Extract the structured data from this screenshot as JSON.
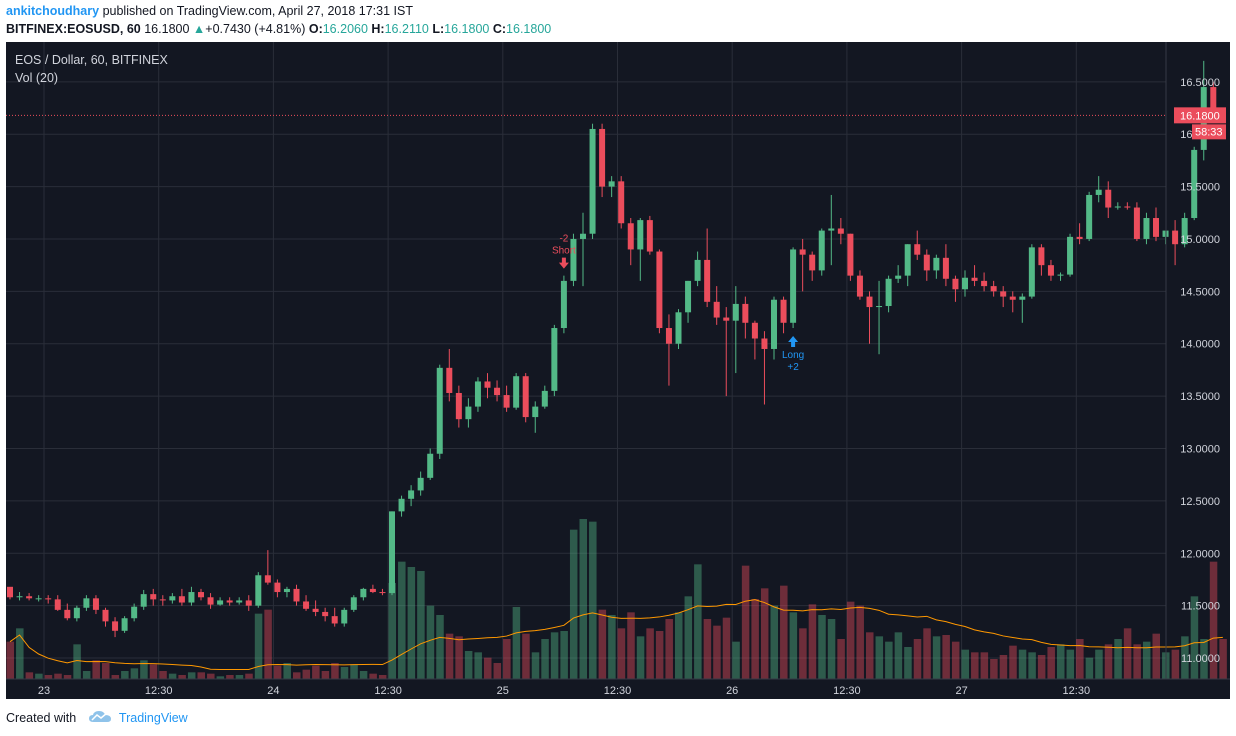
{
  "header": {
    "user": "ankitchoudhary",
    "published_text": "published on TradingView.com, April 27, 2018 17:31 IST",
    "symbol": "BITFINEX:EOSUSD, 60",
    "last": "16.1800",
    "change": "+0.7430 (+4.81%)",
    "o_label": "O:",
    "o_value": "16.2060",
    "h_label": "H:",
    "h_value": "16.2110",
    "l_label": "L:",
    "l_value": "16.1800",
    "c_label": "C:",
    "c_value": "16.1800"
  },
  "legend": {
    "title": "EOS / Dollar, 60, BITFINEX",
    "vol": "Vol (20)"
  },
  "footer": {
    "created_with": "Created with",
    "brand": "TradingView"
  },
  "colors": {
    "background": "#131722",
    "up": "#53b987",
    "down": "#eb4d5c",
    "grid": "#2a2e39",
    "ma": "#ff9800",
    "price_line": "#eb4d5c",
    "signal_short": "#eb4d5c",
    "signal_long": "#2196f3"
  },
  "chart_data": {
    "type": "candlestick",
    "y_axis_ticks": [
      "16.5000",
      "16.0000",
      "15.5000",
      "15.0000",
      "14.5000",
      "14.0000",
      "13.5000",
      "13.0000",
      "12.5000",
      "12.0000",
      "11.5000",
      "11.0000"
    ],
    "ylim": [
      10.8,
      16.88
    ],
    "x_axis_ticks": [
      "23",
      "12:30",
      "24",
      "12:30",
      "25",
      "12:30",
      "26",
      "12:30",
      "27",
      "12:30"
    ],
    "current_price": {
      "label": "16.1800",
      "value": 16.18,
      "countdown": "58:33"
    },
    "signals": [
      {
        "type": "short",
        "text_top": "-2",
        "text_bottom": "Short",
        "index": 58
      },
      {
        "type": "long",
        "text_top": "Long",
        "text_bottom": "+2",
        "index": 82
      }
    ],
    "vol_ma_period": 20,
    "candles": [
      [
        11.68,
        11.66,
        11.56,
        11.58
      ],
      [
        11.58,
        11.63,
        11.55,
        11.59
      ],
      [
        11.59,
        11.62,
        11.55,
        11.57
      ],
      [
        11.57,
        11.6,
        11.54,
        11.57
      ],
      [
        11.57,
        11.6,
        11.52,
        11.56
      ],
      [
        11.56,
        11.6,
        11.45,
        11.46
      ],
      [
        11.46,
        11.52,
        11.36,
        11.38
      ],
      [
        11.38,
        11.5,
        11.35,
        11.48
      ],
      [
        11.48,
        11.6,
        11.45,
        11.57
      ],
      [
        11.57,
        11.6,
        11.42,
        11.46
      ],
      [
        11.46,
        11.48,
        11.3,
        11.35
      ],
      [
        11.35,
        11.39,
        11.2,
        11.26
      ],
      [
        11.26,
        11.4,
        11.24,
        11.38
      ],
      [
        11.38,
        11.52,
        11.35,
        11.49
      ],
      [
        11.49,
        11.65,
        11.46,
        11.61
      ],
      [
        11.61,
        11.66,
        11.5,
        11.56
      ],
      [
        11.56,
        11.6,
        11.5,
        11.55
      ],
      [
        11.55,
        11.62,
        11.52,
        11.59
      ],
      [
        11.59,
        11.66,
        11.5,
        11.53
      ],
      [
        11.53,
        11.68,
        11.5,
        11.63
      ],
      [
        11.63,
        11.66,
        11.55,
        11.58
      ],
      [
        11.58,
        11.62,
        11.47,
        11.51
      ],
      [
        11.51,
        11.58,
        11.5,
        11.55
      ],
      [
        11.55,
        11.58,
        11.5,
        11.53
      ],
      [
        11.53,
        11.58,
        11.51,
        11.55
      ],
      [
        11.55,
        11.6,
        11.45,
        11.5
      ],
      [
        11.5,
        11.82,
        11.48,
        11.79
      ],
      [
        11.79,
        12.03,
        11.7,
        11.72
      ],
      [
        11.72,
        11.75,
        11.58,
        11.63
      ],
      [
        11.63,
        11.68,
        11.58,
        11.66
      ],
      [
        11.66,
        11.7,
        11.5,
        11.54
      ],
      [
        11.54,
        11.6,
        11.45,
        11.47
      ],
      [
        11.47,
        11.55,
        11.4,
        11.44
      ],
      [
        11.44,
        11.48,
        11.35,
        11.4
      ],
      [
        11.4,
        11.48,
        11.3,
        11.33
      ],
      [
        11.33,
        11.48,
        11.3,
        11.46
      ],
      [
        11.46,
        11.6,
        11.44,
        11.58
      ],
      [
        11.58,
        11.67,
        11.55,
        11.66
      ],
      [
        11.66,
        11.7,
        11.62,
        11.63
      ],
      [
        11.63,
        11.66,
        11.6,
        11.62
      ],
      [
        11.62,
        12.4,
        11.6,
        12.4
      ],
      [
        12.4,
        12.55,
        12.35,
        12.52
      ],
      [
        12.52,
        12.65,
        12.45,
        12.6
      ],
      [
        12.6,
        12.78,
        12.55,
        12.72
      ],
      [
        12.72,
        13.0,
        12.7,
        12.95
      ],
      [
        12.95,
        13.8,
        12.9,
        13.77
      ],
      [
        13.77,
        13.95,
        13.45,
        13.53
      ],
      [
        13.53,
        13.6,
        13.2,
        13.28
      ],
      [
        13.28,
        13.48,
        13.2,
        13.4
      ],
      [
        13.4,
        13.68,
        13.35,
        13.64
      ],
      [
        13.64,
        13.72,
        13.48,
        13.58
      ],
      [
        13.58,
        13.65,
        13.45,
        13.51
      ],
      [
        13.51,
        13.6,
        13.35,
        13.39
      ],
      [
        13.39,
        13.72,
        13.37,
        13.69
      ],
      [
        13.69,
        13.72,
        13.25,
        13.3
      ],
      [
        13.3,
        13.45,
        13.15,
        13.4
      ],
      [
        13.4,
        13.6,
        13.38,
        13.55
      ],
      [
        13.55,
        14.18,
        13.5,
        14.15
      ],
      [
        14.15,
        14.65,
        14.1,
        14.6
      ],
      [
        14.6,
        15.05,
        14.55,
        15.0
      ],
      [
        15.0,
        15.25,
        14.55,
        15.05
      ],
      [
        15.05,
        16.1,
        15.0,
        16.05
      ],
      [
        16.05,
        16.1,
        15.4,
        15.5
      ],
      [
        15.5,
        15.6,
        15.4,
        15.55
      ],
      [
        15.55,
        15.6,
        15.1,
        15.15
      ],
      [
        15.15,
        15.2,
        14.75,
        14.9
      ],
      [
        14.9,
        15.2,
        14.6,
        15.18
      ],
      [
        15.18,
        15.22,
        14.85,
        14.88
      ],
      [
        14.88,
        14.9,
        14.1,
        14.15
      ],
      [
        14.15,
        14.28,
        13.6,
        14.0
      ],
      [
        14.0,
        14.33,
        13.95,
        14.3
      ],
      [
        14.3,
        14.6,
        14.2,
        14.6
      ],
      [
        14.6,
        14.88,
        14.55,
        14.8
      ],
      [
        14.8,
        15.1,
        14.35,
        14.4
      ],
      [
        14.4,
        14.55,
        14.18,
        14.25
      ],
      [
        14.25,
        14.35,
        13.5,
        14.22
      ],
      [
        14.22,
        14.55,
        13.72,
        14.38
      ],
      [
        14.38,
        14.45,
        14.05,
        14.2
      ],
      [
        14.2,
        14.22,
        13.85,
        14.05
      ],
      [
        14.05,
        14.12,
        13.42,
        13.95
      ],
      [
        13.95,
        14.45,
        13.85,
        14.42
      ],
      [
        14.42,
        14.45,
        14.1,
        14.2
      ],
      [
        14.2,
        14.92,
        14.15,
        14.9
      ],
      [
        14.9,
        15.0,
        14.5,
        14.85
      ],
      [
        14.85,
        14.88,
        14.6,
        14.7
      ],
      [
        14.7,
        15.1,
        14.65,
        15.08
      ],
      [
        15.08,
        15.42,
        14.75,
        15.1
      ],
      [
        15.1,
        15.2,
        14.95,
        15.05
      ],
      [
        15.05,
        15.05,
        14.6,
        14.65
      ],
      [
        14.65,
        14.7,
        14.42,
        14.45
      ],
      [
        14.45,
        14.5,
        14.0,
        14.35
      ],
      [
        14.35,
        14.6,
        13.9,
        14.36
      ],
      [
        14.36,
        14.65,
        14.3,
        14.62
      ],
      [
        14.62,
        14.75,
        14.58,
        14.65
      ],
      [
        14.65,
        14.95,
        14.55,
        14.95
      ],
      [
        14.95,
        15.08,
        14.8,
        14.85
      ],
      [
        14.85,
        14.9,
        14.6,
        14.7
      ],
      [
        14.7,
        14.85,
        14.62,
        14.82
      ],
      [
        14.82,
        14.95,
        14.55,
        14.62
      ],
      [
        14.62,
        14.65,
        14.4,
        14.52
      ],
      [
        14.52,
        14.7,
        14.45,
        14.63
      ],
      [
        14.63,
        14.75,
        14.55,
        14.6
      ],
      [
        14.6,
        14.68,
        14.5,
        14.55
      ],
      [
        14.55,
        14.6,
        14.45,
        14.5
      ],
      [
        14.5,
        14.55,
        14.35,
        14.45
      ],
      [
        14.45,
        14.5,
        14.3,
        14.42
      ],
      [
        14.42,
        14.48,
        14.2,
        14.45
      ],
      [
        14.45,
        14.95,
        14.43,
        14.92
      ],
      [
        14.92,
        14.95,
        14.65,
        14.75
      ],
      [
        14.75,
        14.8,
        14.6,
        14.65
      ],
      [
        14.65,
        14.68,
        14.6,
        14.66
      ],
      [
        14.66,
        15.05,
        14.64,
        15.02
      ],
      [
        15.02,
        15.15,
        14.95,
        15.0
      ],
      [
        15.0,
        15.45,
        14.98,
        15.42
      ],
      [
        15.42,
        15.6,
        15.35,
        15.47
      ],
      [
        15.47,
        15.55,
        15.2,
        15.3
      ],
      [
        15.3,
        15.35,
        15.28,
        15.31
      ],
      [
        15.31,
        15.35,
        15.28,
        15.3
      ],
      [
        15.3,
        15.35,
        14.98,
        15.0
      ],
      [
        15.0,
        15.25,
        14.95,
        15.2
      ],
      [
        15.2,
        15.3,
        14.98,
        15.02
      ],
      [
        15.02,
        15.05,
        14.95,
        15.08
      ],
      [
        15.08,
        15.18,
        14.75,
        14.95
      ],
      [
        14.95,
        15.25,
        14.92,
        15.2
      ],
      [
        15.2,
        15.88,
        15.18,
        15.85
      ],
      [
        15.85,
        16.7,
        15.75,
        16.45
      ],
      [
        16.45,
        16.5,
        16.18,
        16.2
      ],
      [
        16.2,
        16.21,
        16.18,
        16.18
      ]
    ],
    "volume": [
      0.28,
      0.38,
      0.05,
      0.04,
      0.03,
      0.04,
      0.03,
      0.26,
      0.06,
      0.14,
      0.12,
      0.03,
      0.06,
      0.08,
      0.14,
      0.11,
      0.06,
      0.04,
      0.03,
      0.05,
      0.05,
      0.04,
      0.02,
      0.03,
      0.03,
      0.04,
      0.49,
      0.52,
      0.1,
      0.12,
      0.05,
      0.07,
      0.1,
      0.06,
      0.12,
      0.09,
      0.11,
      0.06,
      0.04,
      0.03,
      0.72,
      0.88,
      0.84,
      0.81,
      0.55,
      0.48,
      0.34,
      0.32,
      0.21,
      0.2,
      0.16,
      0.12,
      0.3,
      0.54,
      0.34,
      0.2,
      0.3,
      0.35,
      0.36,
      1.12,
      1.2,
      1.18,
      0.52,
      0.48,
      0.38,
      0.5,
      0.32,
      0.38,
      0.36,
      0.45,
      0.5,
      0.62,
      0.86,
      0.45,
      0.4,
      0.46,
      0.28,
      0.85,
      0.6,
      0.68,
      0.55,
      0.7,
      0.5,
      0.38,
      0.56,
      0.48,
      0.45,
      0.3,
      0.58,
      0.55,
      0.35,
      0.32,
      0.28,
      0.35,
      0.24,
      0.3,
      0.38,
      0.32,
      0.33,
      0.28,
      0.22,
      0.2,
      0.2,
      0.15,
      0.18,
      0.25,
      0.22,
      0.2,
      0.18,
      0.24,
      0.26,
      0.22,
      0.3,
      0.16,
      0.22,
      0.26,
      0.3,
      0.38,
      0.26,
      0.28,
      0.34,
      0.2,
      0.22,
      0.32,
      0.62,
      0.3,
      0.88,
      0.3
    ]
  }
}
